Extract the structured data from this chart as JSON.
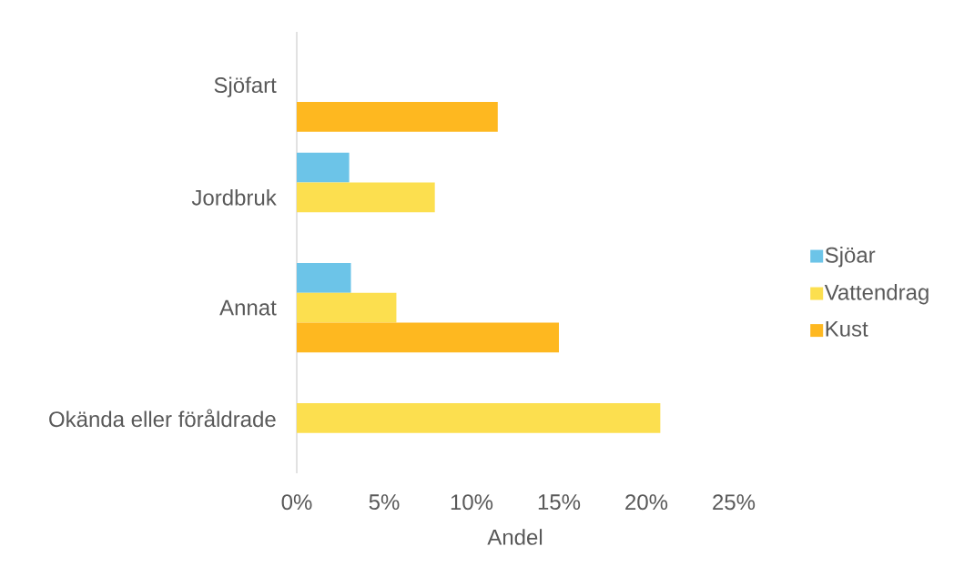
{
  "chart_data": {
    "type": "bar",
    "orientation": "horizontal",
    "xlabel": "Andel",
    "categories": [
      "Sjöfart",
      "Jordbruk",
      "Annat",
      "Okända eller föråldrade"
    ],
    "series": [
      {
        "name": "Sjöar",
        "color": "#6cc4e8",
        "values": [
          null,
          3.0,
          3.1,
          null
        ]
      },
      {
        "name": "Vattendrag",
        "color": "#fcdf4f",
        "values": [
          null,
          7.9,
          5.7,
          20.8
        ]
      },
      {
        "name": "Kust",
        "color": "#feb820",
        "values": [
          11.5,
          null,
          15.0,
          null
        ]
      }
    ],
    "xlim": [
      0,
      25
    ],
    "xticks": [
      {
        "value": 0,
        "label": "0%"
      },
      {
        "value": 5,
        "label": "5%"
      },
      {
        "value": 10,
        "label": "10%"
      },
      {
        "value": 15,
        "label": "15%"
      },
      {
        "value": 20,
        "label": "20%"
      },
      {
        "value": 25,
        "label": "25%"
      }
    ],
    "legend": "right"
  }
}
